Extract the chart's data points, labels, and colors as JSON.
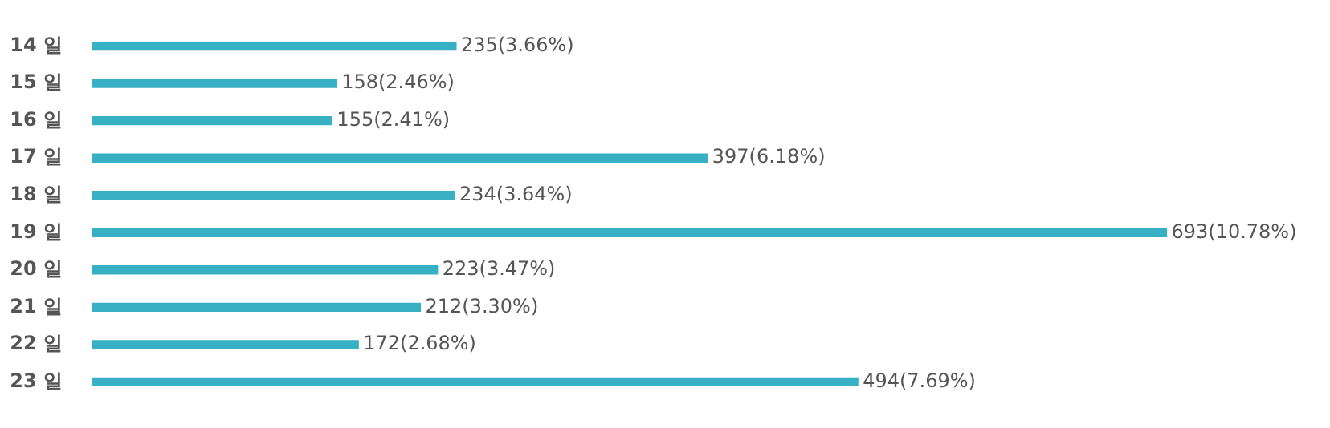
{
  "chart_data": {
    "type": "bar",
    "orientation": "horizontal",
    "categories": [
      "14 일",
      "15 일",
      "16 일",
      "17 일",
      "18 일",
      "19 일",
      "20 일",
      "21 일",
      "22 일",
      "23 일"
    ],
    "values": [
      235,
      158,
      155,
      397,
      234,
      693,
      223,
      212,
      172,
      494
    ],
    "value_labels": [
      "235(3.66%)",
      "158(2.46%)",
      "155(2.41%)",
      "397(6.18%)",
      "234(3.64%)",
      "693(10.78%)",
      "223(3.47%)",
      "212(3.30%)",
      "172(2.68%)",
      "494(7.69%)"
    ],
    "color": "#38b0c4"
  }
}
